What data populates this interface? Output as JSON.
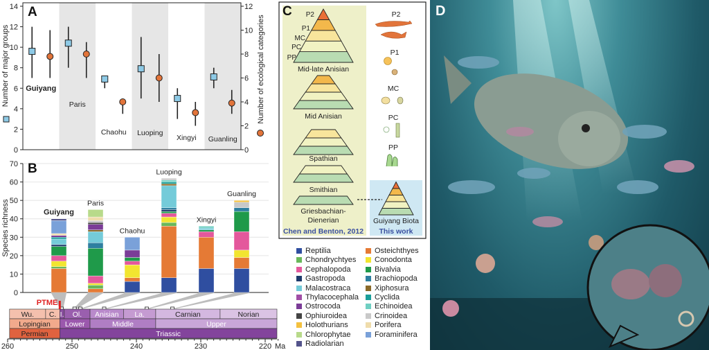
{
  "panels": {
    "a": "A",
    "b": "B",
    "c": "C",
    "d": "D"
  },
  "chart_data": [
    {
      "type": "scatter",
      "panel": "A",
      "categories": [
        "Guiyang",
        "Paris",
        "Chaohu",
        "Luoping",
        "Xingyi",
        "Guanling"
      ],
      "highlight": "Guiyang",
      "ylabel": "Number of major groups",
      "ylabel_right": "Number of ecological categories",
      "ylim": [
        0,
        14
      ],
      "ylim_right": [
        0,
        12
      ],
      "yticks": [
        0,
        2,
        4,
        6,
        8,
        10,
        12,
        14
      ],
      "yticks_right": [
        0,
        2,
        4,
        6,
        8,
        10,
        12
      ],
      "series": [
        {
          "marker": "square",
          "color": "#8ecae6",
          "axis": "left",
          "values": [
            9.6,
            10.4,
            6.9,
            7.9,
            5.0,
            7.1
          ],
          "low": [
            7,
            8,
            6,
            5,
            3,
            6
          ],
          "high": [
            12,
            12,
            7,
            11,
            6,
            8
          ]
        },
        {
          "marker": "circle",
          "color": "#e2743a",
          "axis": "right",
          "values": [
            7.8,
            8.0,
            4.0,
            6.0,
            3.1,
            3.9
          ],
          "low": [
            6,
            6,
            3,
            4,
            2,
            3
          ],
          "high": [
            10,
            9,
            4,
            8,
            4,
            5
          ]
        }
      ],
      "shaded_columns": [
        "Paris",
        "Luoping",
        "Guanling"
      ]
    },
    {
      "type": "bar",
      "stacked": true,
      "panel": "B",
      "categories": [
        "Guiyang",
        "Paris",
        "Chaohu",
        "Luoping",
        "Xingyi",
        "Guanling"
      ],
      "highlight": "Guiyang",
      "ylabel": "Species richness",
      "ylim": [
        0,
        70
      ],
      "yticks": [
        0,
        10,
        20,
        30,
        40,
        50,
        60,
        70
      ],
      "grid": true,
      "series": [
        {
          "name": "Reptilia",
          "color": "#2f4ea0",
          "values": [
            0,
            0,
            6,
            8,
            13,
            13
          ]
        },
        {
          "name": "Osteichthyes",
          "color": "#e57a35",
          "values": [
            13,
            2,
            2,
            28,
            17,
            6
          ]
        },
        {
          "name": "Chondrychtyes",
          "color": "#69b85a",
          "values": [
            1,
            2,
            0,
            2,
            0,
            0
          ]
        },
        {
          "name": "Conodonta",
          "color": "#f2e530",
          "values": [
            3,
            1,
            7,
            3,
            0,
            4
          ]
        },
        {
          "name": "Cephalopoda",
          "color": "#e4589c",
          "values": [
            3,
            4,
            2,
            2,
            3,
            10
          ]
        },
        {
          "name": "Bivalvia",
          "color": "#1f9a4a",
          "values": [
            5,
            15,
            2,
            1,
            1,
            11
          ]
        },
        {
          "name": "Gastropoda",
          "color": "#1d3a6b",
          "values": [
            1,
            0,
            0,
            1,
            0,
            0
          ]
        },
        {
          "name": "Brachiopoda",
          "color": "#2e7fa0",
          "values": [
            0,
            3,
            0,
            1,
            0,
            2
          ]
        },
        {
          "name": "Malacostraca",
          "color": "#74cbd9",
          "values": [
            3,
            6,
            0,
            12,
            1,
            0
          ]
        },
        {
          "name": "Xiphosura",
          "color": "#8a6a2a",
          "values": [
            0,
            1,
            0,
            1,
            0,
            0
          ]
        },
        {
          "name": "Thylacocephala",
          "color": "#a14ea6",
          "values": [
            0,
            0,
            0,
            0,
            0,
            0
          ]
        },
        {
          "name": "Cyclida",
          "color": "#1a9e9a",
          "values": [
            1,
            0,
            0,
            1,
            0,
            0
          ]
        },
        {
          "name": "Ostrocoda",
          "color": "#7b3c97",
          "values": [
            1,
            3,
            4,
            0,
            0,
            0
          ]
        },
        {
          "name": "Echinoidea",
          "color": "#6fcfc2",
          "values": [
            0,
            0,
            0,
            1,
            1,
            0
          ]
        },
        {
          "name": "Ophiuroidea",
          "color": "#444444",
          "values": [
            0,
            1,
            0,
            0,
            0,
            0
          ]
        },
        {
          "name": "Crinoidea",
          "color": "#c9c9c9",
          "values": [
            0,
            1,
            0,
            1,
            0,
            3
          ]
        },
        {
          "name": "Holothurians",
          "color": "#f4c13f",
          "values": [
            0,
            0,
            0,
            0,
            0,
            1
          ]
        },
        {
          "name": "Porifera",
          "color": "#efdcab",
          "values": [
            1,
            2,
            0,
            0,
            0,
            0
          ]
        },
        {
          "name": "Chlorophytae",
          "color": "#b8da8a",
          "values": [
            0,
            4,
            0,
            0,
            0,
            0
          ]
        },
        {
          "name": "Foraminifera",
          "color": "#7aa1d9",
          "values": [
            7,
            0,
            7,
            0,
            0,
            0
          ]
        },
        {
          "name": "Radiolarian",
          "color": "#53538b",
          "values": [
            1,
            0,
            0,
            0,
            0,
            0
          ]
        }
      ],
      "site_ages_ma": [
        251.6,
        249.6,
        248.7,
        245.0,
        238.4,
        234.4
      ]
    }
  ],
  "timescale": {
    "xlim": [
      260,
      218
    ],
    "ticks": [
      260,
      250,
      240,
      230,
      220
    ],
    "unit": "Ma",
    "event": {
      "label": "PTME",
      "age": 251.9,
      "color": "#e02020"
    },
    "stages": [
      {
        "label": "Wu.",
        "from": 259.7,
        "to": 254.1,
        "color": "#f4c0ad"
      },
      {
        "label": "C.",
        "from": 254.1,
        "to": 251.9,
        "color": "#f4c0ad"
      },
      {
        "label": "I.",
        "from": 251.9,
        "to": 251.2,
        "color": "#8a4fa0"
      },
      {
        "label": "Ol.",
        "from": 251.2,
        "to": 247.2,
        "color": "#9a5fae"
      },
      {
        "label": "Anisian",
        "from": 247.2,
        "to": 242.0,
        "color": "#b98acb"
      },
      {
        "label": "La.",
        "from": 242.0,
        "to": 237.0,
        "color": "#c59bd2"
      },
      {
        "label": "Carnian",
        "from": 237.0,
        "to": 227.0,
        "color": "#d4b8e0"
      },
      {
        "label": "Norian",
        "from": 227.0,
        "to": 218.0,
        "color": "#dbc3e4"
      }
    ],
    "series": [
      {
        "label": "Lopingian",
        "from": 259.7,
        "to": 251.9,
        "color": "#f2aa8c"
      },
      {
        "label": "Lower",
        "from": 251.9,
        "to": 247.2,
        "color": "#9b58ad"
      },
      {
        "label": "Middle",
        "from": 247.2,
        "to": 237.0,
        "color": "#b07ec4"
      },
      {
        "label": "Upper",
        "from": 237.0,
        "to": 218.0,
        "color": "#c9a6d8"
      }
    ],
    "systems": [
      {
        "label": "Permian",
        "from": 259.7,
        "to": 251.9,
        "color": "#e0623f"
      },
      {
        "label": "Triassic",
        "from": 251.9,
        "to": 218.0,
        "color": "#83449c"
      }
    ]
  },
  "panel_c": {
    "levels": [
      "P2",
      "P1",
      "MC",
      "PC",
      "PP"
    ],
    "level_colors": [
      "#ea6f36",
      "#f3b84b",
      "#f8e59c",
      "#f1f2c2",
      "#b9dcb2"
    ],
    "pyramids": [
      {
        "label": "Mid-late Anisian",
        "layers": 5
      },
      {
        "label": "Mid Anisian",
        "layers": 4
      },
      {
        "label": "Spathian",
        "layers": 3
      },
      {
        "label": "Smithian",
        "layers": 2
      },
      {
        "label": "Griesbachian-\nDienerian",
        "layers": 1
      }
    ],
    "label_line1": "Griesbachian-",
    "label_line2": "Dienerian",
    "source": "Chen and Benton, 2012",
    "this_work_pyramid": "Guiyang Biota",
    "this_work": "This work",
    "background_color": "#eef0c9",
    "this_work_color": "#cfe8f3",
    "text_blue": "#3a4fa0"
  }
}
